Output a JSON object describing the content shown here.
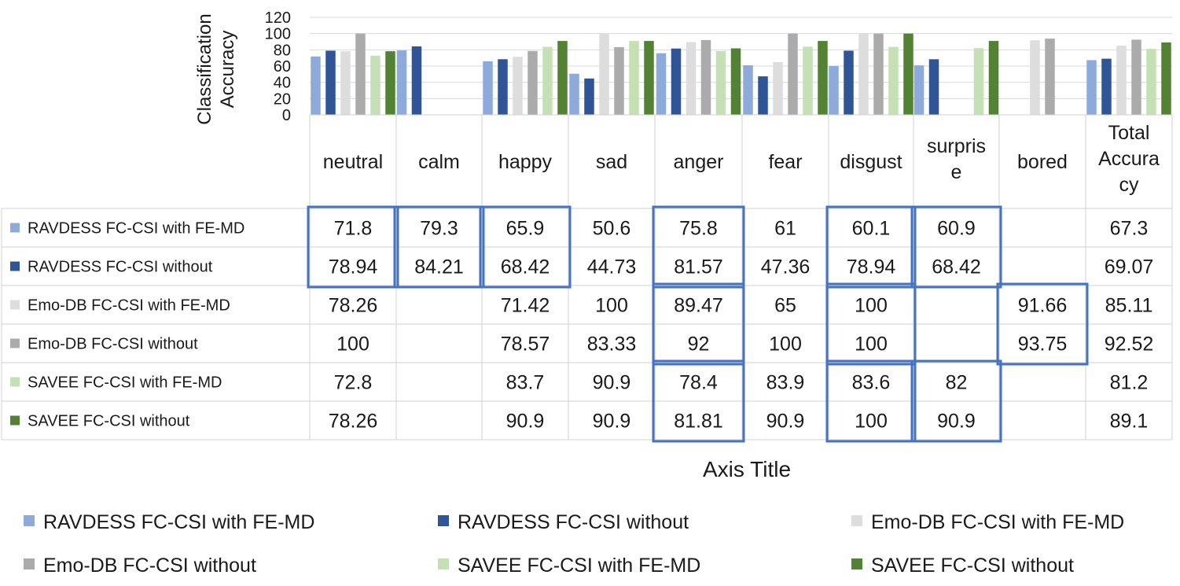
{
  "chart_data": {
    "type": "bar",
    "ylabel": "Classification Accuracy",
    "xlabel": "Axis Title",
    "ylim": [
      0,
      120
    ],
    "yticks": [
      0,
      20,
      40,
      60,
      80,
      100,
      120
    ],
    "grid": true,
    "legend_position": "bottom",
    "categories": [
      "neutral",
      "calm",
      "happy",
      "sad",
      "anger",
      "fear",
      "disgust",
      "surprise",
      "bored",
      "Total Accuracy"
    ],
    "category_display": [
      [
        "neutral"
      ],
      [
        "calm"
      ],
      [
        "happy"
      ],
      [
        "sad"
      ],
      [
        "anger"
      ],
      [
        "fear"
      ],
      [
        "disgust"
      ],
      [
        "surpris",
        "e"
      ],
      [
        "bored"
      ],
      [
        "Total",
        "Accura",
        "cy"
      ]
    ],
    "series": [
      {
        "name": "RAVDESS FC-CSI with FE-MD",
        "color": "#8eaadb",
        "values": [
          71.8,
          79.3,
          65.9,
          50.6,
          75.8,
          61,
          60.1,
          60.9,
          null,
          67.3
        ],
        "labels": [
          "71.8",
          "79.3",
          "65.9",
          "50.6",
          "75.8",
          "61",
          "60.1",
          "60.9",
          "",
          "67.3"
        ]
      },
      {
        "name": "RAVDESS FC-CSI without",
        "color": "#2f5597",
        "values": [
          78.94,
          84.21,
          68.42,
          44.73,
          81.57,
          47.36,
          78.94,
          68.42,
          null,
          69.07
        ],
        "labels": [
          "78.94",
          "84.21",
          "68.42",
          "44.73",
          "81.57",
          "47.36",
          "78.94",
          "68.42",
          "",
          "69.07"
        ]
      },
      {
        "name": "Emo-DB FC-CSI with FE-MD",
        "color": "#dddddd",
        "values": [
          78.26,
          null,
          71.42,
          100,
          89.47,
          65,
          100,
          null,
          91.66,
          85.11
        ],
        "labels": [
          "78.26",
          "",
          "71.42",
          "100",
          "89.47",
          "65",
          "100",
          "",
          "91.66",
          "85.11"
        ]
      },
      {
        "name": "Emo-DB FC-CSI without",
        "color": "#ababab",
        "values": [
          100,
          null,
          78.57,
          83.33,
          92,
          100,
          100,
          null,
          93.75,
          92.52
        ],
        "labels": [
          "100",
          "",
          "78.57",
          "83.33",
          "92",
          "100",
          "100",
          "",
          "93.75",
          "92.52"
        ]
      },
      {
        "name": "SAVEE FC-CSI with FE-MD",
        "color": "#c5e0b4",
        "values": [
          72.8,
          null,
          83.7,
          90.9,
          78.4,
          83.9,
          83.6,
          82,
          null,
          81.2
        ],
        "labels": [
          "72.8",
          "",
          "83.7",
          "90.9",
          "78.4",
          "83.9",
          "83.6",
          "82",
          "",
          "81.2"
        ]
      },
      {
        "name": "SAVEE FC-CSI without",
        "color": "#548235",
        "values": [
          78.26,
          null,
          90.9,
          90.9,
          81.81,
          90.9,
          100,
          90.9,
          null,
          89.1
        ],
        "labels": [
          "78.26",
          "",
          "90.9",
          "90.9",
          "81.81",
          "90.9",
          "100",
          "90.9",
          "",
          "89.1"
        ]
      }
    ],
    "highlight_color": "#4472c4",
    "highlight_boxes": [
      {
        "categories": [
          "neutral"
        ],
        "series": [
          0,
          1
        ]
      },
      {
        "categories": [
          "calm"
        ],
        "series": [
          0,
          1
        ]
      },
      {
        "categories": [
          "happy"
        ],
        "series": [
          0,
          1
        ]
      },
      {
        "categories": [
          "anger"
        ],
        "series": [
          0,
          1
        ]
      },
      {
        "categories": [
          "anger"
        ],
        "series": [
          2,
          3
        ]
      },
      {
        "categories": [
          "anger"
        ],
        "series": [
          4,
          5
        ]
      },
      {
        "categories": [
          "disgust"
        ],
        "series": [
          0,
          1
        ]
      },
      {
        "categories": [
          "surprise"
        ],
        "series": [
          0,
          1
        ]
      },
      {
        "categories": [
          "disgust"
        ],
        "series": [
          2,
          3
        ]
      },
      {
        "categories": [
          "bored"
        ],
        "series": [
          2,
          3
        ]
      },
      {
        "categories": [
          "disgust"
        ],
        "series": [
          4,
          5
        ]
      },
      {
        "categories": [
          "surprise"
        ],
        "series": [
          4,
          5
        ]
      }
    ]
  }
}
